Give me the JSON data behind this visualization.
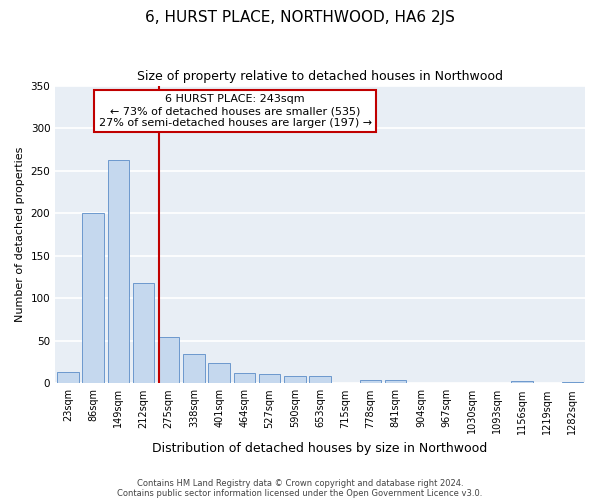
{
  "title": "6, HURST PLACE, NORTHWOOD, HA6 2JS",
  "subtitle": "Size of property relative to detached houses in Northwood",
  "xlabel": "Distribution of detached houses by size in Northwood",
  "ylabel": "Number of detached properties",
  "bin_labels": [
    "23sqm",
    "86sqm",
    "149sqm",
    "212sqm",
    "275sqm",
    "338sqm",
    "401sqm",
    "464sqm",
    "527sqm",
    "590sqm",
    "653sqm",
    "715sqm",
    "778sqm",
    "841sqm",
    "904sqm",
    "967sqm",
    "1030sqm",
    "1093sqm",
    "1156sqm",
    "1219sqm",
    "1282sqm"
  ],
  "bar_heights": [
    13,
    200,
    262,
    118,
    54,
    34,
    24,
    12,
    11,
    8,
    9,
    0,
    4,
    4,
    0,
    0,
    0,
    0,
    3,
    0,
    2
  ],
  "bar_color": "#c5d8ee",
  "bar_edgecolor": "#5b8dc8",
  "background_color": "#e8eef5",
  "grid_color": "#ffffff",
  "vline_x": 3.62,
  "vline_color": "#c00000",
  "annotation_title": "6 HURST PLACE: 243sqm",
  "annotation_line1": "← 73% of detached houses are smaller (535)",
  "annotation_line2": "27% of semi-detached houses are larger (197) →",
  "annotation_box_facecolor": "#ffffff",
  "annotation_box_edgecolor": "#c00000",
  "ylim": [
    0,
    350
  ],
  "yticks": [
    0,
    50,
    100,
    150,
    200,
    250,
    300,
    350
  ],
  "footnote1": "Contains HM Land Registry data © Crown copyright and database right 2024.",
  "footnote2": "Contains public sector information licensed under the Open Government Licence v3.0.",
  "title_fontsize": 11,
  "subtitle_fontsize": 9,
  "xlabel_fontsize": 9,
  "ylabel_fontsize": 8,
  "tick_fontsize": 7,
  "annotation_fontsize": 8,
  "footnote_fontsize": 6,
  "bar_width": 0.85
}
